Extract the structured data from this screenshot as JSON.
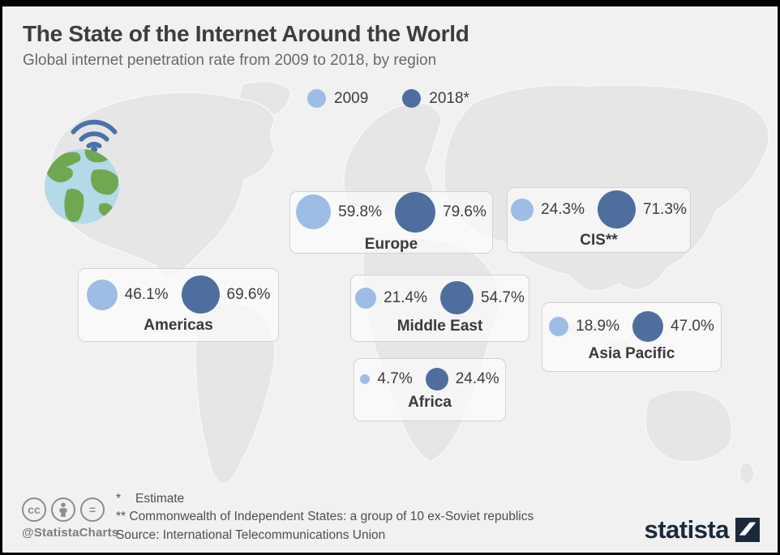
{
  "header": {
    "title": "The State of the Internet Around the World",
    "subtitle": "Global internet penetration rate from 2009 to 2018, by region"
  },
  "legend": {
    "items": [
      {
        "label": "2009",
        "color": "#9dbde4"
      },
      {
        "label": "2018*",
        "color": "#4e6f9e"
      }
    ]
  },
  "chart_data": {
    "type": "bubble",
    "title": "The State of the Internet Around the World",
    "subtitle": "Global internet penetration rate from 2009 to 2018, by region",
    "unit": "%",
    "categories": [
      "Europe",
      "CIS**",
      "Americas",
      "Middle East",
      "Asia Pacific",
      "Africa"
    ],
    "series": [
      {
        "name": "2009",
        "color": "#9dbde4",
        "values": [
          59.8,
          24.3,
          46.1,
          21.4,
          18.9,
          4.7
        ]
      },
      {
        "name": "2018*",
        "color": "#4e6f9e",
        "values": [
          79.6,
          71.3,
          69.6,
          54.7,
          47.0,
          24.4
        ]
      }
    ],
    "encoding": "bubble area proportional to value",
    "legend_position": "top-center"
  },
  "footer": {
    "footnote1_marker": "*",
    "footnote1_text": "Estimate",
    "footnote2": "** Commonwealth of Independent States: a group of 10 ex-Soviet republics",
    "source": "Source: International Telecommunications Union",
    "handle": "@StatistaCharts",
    "brand": "statista",
    "cc_text_icon": "cc",
    "cc_nd_icon": "="
  }
}
